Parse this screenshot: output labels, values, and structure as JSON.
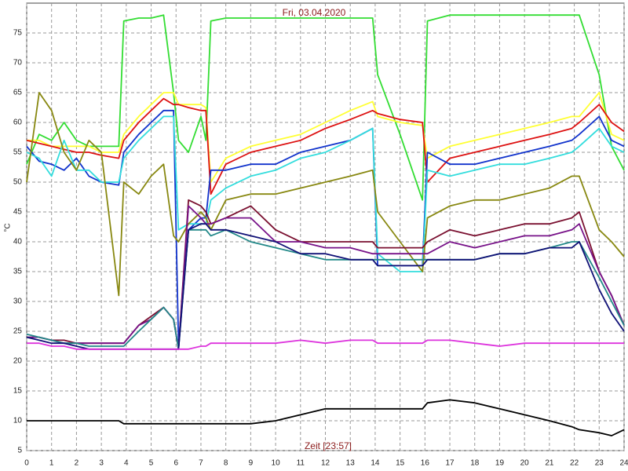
{
  "chart_data": {
    "type": "line",
    "title": "Fri, 03.04.2020",
    "x_label": "Zeit [23:57]",
    "y_label": "°C",
    "xlim": [
      0,
      24
    ],
    "ylim": [
      5,
      80
    ],
    "grid": true,
    "xticks": [
      0,
      1,
      2,
      3,
      4,
      5,
      6,
      7,
      8,
      9,
      10,
      11,
      12,
      13,
      14,
      15,
      16,
      17,
      18,
      19,
      20,
      21,
      22,
      23,
      24
    ],
    "yticks": [
      5,
      10,
      15,
      20,
      25,
      30,
      35,
      40,
      45,
      50,
      55,
      60,
      65,
      70,
      75
    ],
    "x": [
      0,
      0.5,
      1,
      1.5,
      2,
      2.5,
      3,
      3.7,
      3.9,
      4.5,
      5,
      5.5,
      5.9,
      6.1,
      6.5,
      7,
      7.2,
      7.4,
      8,
      9,
      10,
      11,
      12,
      13,
      13.9,
      14.1,
      15,
      15.9,
      16.1,
      17,
      18,
      19,
      20,
      21,
      21.9,
      22.2,
      23,
      23.5,
      24
    ],
    "series": [
      {
        "color": "#33dd33",
        "values": [
          53,
          58,
          57,
          60,
          57,
          56,
          56,
          56,
          77,
          77.5,
          77.5,
          78,
          65,
          57,
          55,
          61,
          57,
          77,
          77.5,
          77.5,
          77.5,
          77.5,
          77.5,
          77.5,
          77.5,
          68,
          58,
          47,
          77,
          78,
          78,
          78,
          78,
          78,
          78,
          78,
          68,
          56,
          52
        ]
      },
      {
        "color": "#ffff33",
        "values": [
          57,
          57,
          56,
          56,
          56,
          56,
          55,
          55,
          58,
          61,
          63,
          65,
          65,
          63,
          63,
          63,
          62.5,
          50,
          54,
          56,
          57,
          58,
          60,
          62,
          63.5,
          61,
          60,
          59.5,
          54,
          56,
          57,
          58,
          59,
          60,
          61,
          61,
          65,
          58,
          57
        ]
      },
      {
        "color": "#dd1111",
        "values": [
          57,
          56.5,
          56,
          55.5,
          55,
          55,
          54.5,
          54,
          57,
          60,
          62,
          64,
          63,
          63,
          62.5,
          62,
          62,
          48,
          53,
          55,
          56,
          57,
          59,
          60.5,
          62,
          61.5,
          60.5,
          60,
          50,
          54,
          55,
          56,
          57,
          58,
          59,
          60,
          63,
          60,
          58.5
        ]
      },
      {
        "color": "#1133cc",
        "values": [
          56,
          53.5,
          53,
          52,
          54,
          51,
          50,
          49.5,
          55,
          58,
          60,
          62,
          62,
          23,
          42,
          44,
          44,
          52,
          52,
          53,
          53,
          55,
          56,
          57,
          59,
          36,
          36,
          36,
          55,
          53,
          53,
          54,
          55,
          56,
          57,
          58,
          61,
          57,
          56
        ]
      },
      {
        "color": "#33dddd",
        "values": [
          55,
          54,
          51,
          57,
          52,
          52,
          50,
          50,
          54,
          57,
          59,
          61,
          61,
          42,
          43,
          43,
          43,
          47,
          49,
          51,
          52,
          54,
          55,
          57,
          59,
          38,
          35,
          35,
          52,
          51,
          52,
          53,
          53,
          54,
          55,
          56,
          59,
          56,
          55
        ]
      },
      {
        "color": "#888811",
        "values": [
          50,
          65,
          62,
          55,
          52,
          57,
          55,
          31,
          50,
          48,
          51,
          53,
          41,
          40,
          43,
          45,
          44,
          42,
          47,
          48,
          48,
          49,
          50,
          51,
          52,
          45,
          40,
          35,
          44,
          46,
          47,
          47,
          48,
          49,
          51,
          51,
          42,
          40,
          37.5
        ]
      },
      {
        "color": "#7a1030",
        "values": [
          24,
          24,
          23.5,
          23.5,
          23,
          23,
          23,
          23,
          23,
          26,
          27.5,
          29,
          27,
          22,
          47,
          46,
          45,
          43,
          44,
          46,
          42,
          40,
          40,
          40,
          40,
          39,
          39,
          39,
          40,
          42,
          41,
          42,
          43,
          43,
          44,
          45,
          35,
          31,
          26
        ]
      },
      {
        "color": "#771188",
        "values": [
          24,
          24,
          23.5,
          23,
          23,
          23,
          23,
          23,
          23,
          26,
          27,
          29,
          27,
          22,
          46,
          44,
          43,
          43,
          44,
          44,
          40,
          40,
          39,
          39,
          38,
          38,
          38,
          38,
          38,
          40,
          39,
          40,
          41,
          41,
          42,
          43,
          35,
          31,
          26
        ]
      },
      {
        "color": "#228888",
        "values": [
          24.5,
          24,
          23.5,
          23,
          23,
          22.5,
          22.5,
          22.5,
          22.5,
          25,
          27,
          29,
          27,
          22,
          42,
          42,
          42,
          41,
          42,
          40,
          39,
          38,
          37,
          37,
          37,
          37,
          37,
          37,
          37,
          37,
          37,
          38,
          38,
          39,
          40,
          40,
          34,
          30,
          26
        ]
      },
      {
        "color": "#111177",
        "values": [
          24,
          23.5,
          23,
          23,
          22.5,
          22,
          22,
          22,
          22,
          22,
          22,
          22,
          22,
          22,
          42,
          43,
          43,
          42,
          42,
          41,
          40,
          38,
          38,
          37,
          37,
          36,
          36,
          36,
          37,
          37,
          37,
          38,
          38,
          39,
          39,
          40,
          32,
          28,
          25
        ]
      },
      {
        "color": "#dd33dd",
        "values": [
          23,
          23,
          22.5,
          22.5,
          22,
          22,
          22,
          22,
          22,
          22,
          22,
          22,
          22,
          22,
          22,
          22.5,
          22.5,
          23,
          23,
          23,
          23,
          23.5,
          23,
          23.5,
          23.5,
          23,
          23,
          23,
          23.5,
          23.5,
          23,
          22.5,
          23,
          23,
          23,
          23,
          23,
          23,
          23
        ]
      },
      {
        "color": "#000000",
        "values": [
          10,
          10,
          10,
          10,
          10,
          10,
          10,
          10,
          9.5,
          9.5,
          9.5,
          9.5,
          9.5,
          9.5,
          9.5,
          9.5,
          9.5,
          9.5,
          9.5,
          9.5,
          10,
          11,
          12,
          12,
          12,
          12,
          12,
          12,
          13,
          13.5,
          13,
          12,
          11,
          10,
          9,
          8.5,
          8,
          7.5,
          8.5
        ]
      }
    ]
  }
}
